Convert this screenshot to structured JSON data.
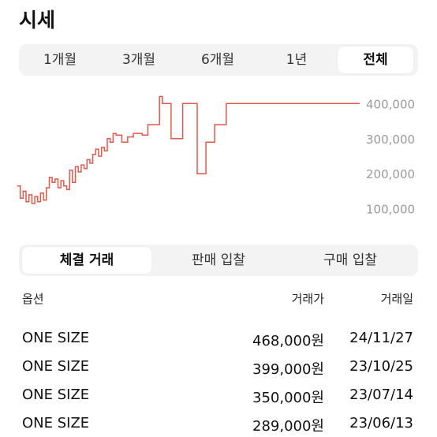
{
  "page": {
    "title": "시세"
  },
  "period_tabs": [
    {
      "label": "1개월",
      "active": false
    },
    {
      "label": "3개월",
      "active": false
    },
    {
      "label": "6개월",
      "active": false
    },
    {
      "label": "1년",
      "active": false
    },
    {
      "label": "전체",
      "active": true
    }
  ],
  "trade_tabs": [
    {
      "label": "체결 거래",
      "active": true
    },
    {
      "label": "판매 입찰",
      "active": false
    },
    {
      "label": "구매 입찰",
      "active": false
    }
  ],
  "table": {
    "headers": {
      "option": "옵션",
      "price": "거래가",
      "date": "거래일"
    },
    "rows": [
      {
        "option": "ONE SIZE",
        "price": "468,000원",
        "date": "24/11/27"
      },
      {
        "option": "ONE SIZE",
        "price": "399,000원",
        "date": "23/10/25"
      },
      {
        "option": "ONE SIZE",
        "price": "350,000원",
        "date": "23/07/14"
      },
      {
        "option": "ONE SIZE",
        "price": "289,000원",
        "date": "23/06/13"
      }
    ]
  },
  "chart_data": {
    "type": "line",
    "title": "",
    "xlabel": "",
    "ylabel": "",
    "color": "#e5574a",
    "ylim": [
      70000,
      430000
    ],
    "yticks": [
      {
        "value": 400000,
        "label": "400,000"
      },
      {
        "value": 300000,
        "label": "300,000"
      },
      {
        "value": 200000,
        "label": "200,000"
      },
      {
        "value": 100000,
        "label": "100,000"
      }
    ],
    "values": [
      165000,
      130000,
      150000,
      120000,
      140000,
      115000,
      135000,
      120000,
      145000,
      125000,
      160000,
      190000,
      175000,
      185000,
      160000,
      180000,
      165000,
      155000,
      210000,
      175000,
      220000,
      205000,
      225000,
      215000,
      240000,
      230000,
      255000,
      270000,
      250000,
      275000,
      265000,
      300000,
      290000,
      315000,
      310000,
      310000,
      290000,
      290000,
      305000,
      305000,
      315000,
      315000,
      315000,
      310000,
      310000,
      340000,
      340000,
      340000,
      340000,
      420000,
      400000,
      400000,
      400000,
      300000,
      300000,
      300000,
      300000,
      400000,
      400000,
      400000,
      400000,
      400000,
      200000,
      200000,
      200000,
      290000,
      290000,
      290000,
      340000,
      340000,
      340000,
      340000,
      400000,
      400000,
      400000,
      400000,
      400000,
      400000,
      400000,
      400000,
      400000,
      400000,
      400000,
      400000,
      400000,
      400000,
      400000,
      400000,
      400000,
      400000,
      400000,
      400000,
      400000,
      400000,
      400000,
      400000,
      400000,
      400000,
      400000,
      400000,
      400000,
      400000,
      400000,
      400000,
      400000,
      400000,
      400000,
      400000,
      400000,
      400000,
      400000,
      400000,
      400000,
      400000,
      400000,
      400000,
      400000,
      400000,
      400000
    ]
  }
}
